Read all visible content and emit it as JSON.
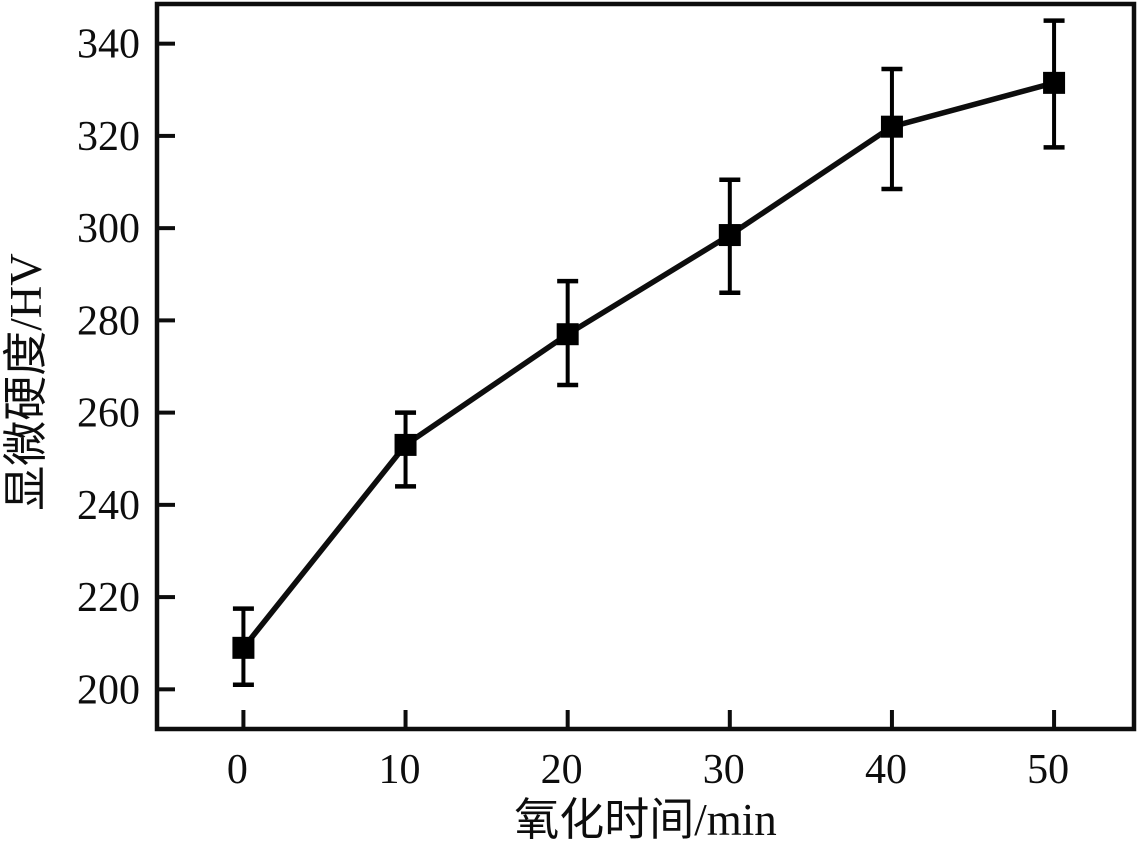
{
  "figure": {
    "background": "#ffffff",
    "line_color": "#0d0d0d",
    "marker_color": "#000000",
    "frame_color": "#0d0d0d",
    "text_color": "#0d0d0d"
  },
  "chart_data": {
    "type": "line",
    "title": "",
    "xlabel": "氧化时间/min",
    "ylabel": "显微硬度/HV",
    "x": [
      0,
      10,
      20,
      30,
      40,
      50
    ],
    "series": [
      {
        "name": "microhardness",
        "values": [
          209,
          253,
          277,
          298.5,
          322,
          331.5
        ],
        "error_upper": [
          217.5,
          260,
          288.5,
          310.5,
          334.5,
          345
        ],
        "error_lower": [
          201,
          244,
          266,
          286,
          308.5,
          317.5
        ],
        "marker": "filled-square",
        "color": "#000000"
      }
    ],
    "xticks": [
      0,
      10,
      20,
      30,
      40,
      50
    ],
    "yticks": [
      200,
      220,
      240,
      260,
      280,
      300,
      320,
      340
    ],
    "xlim": [
      -5.33,
      54.93
    ],
    "ylim": [
      191.4,
      348.6
    ],
    "grid": false,
    "legend_position": "none"
  }
}
